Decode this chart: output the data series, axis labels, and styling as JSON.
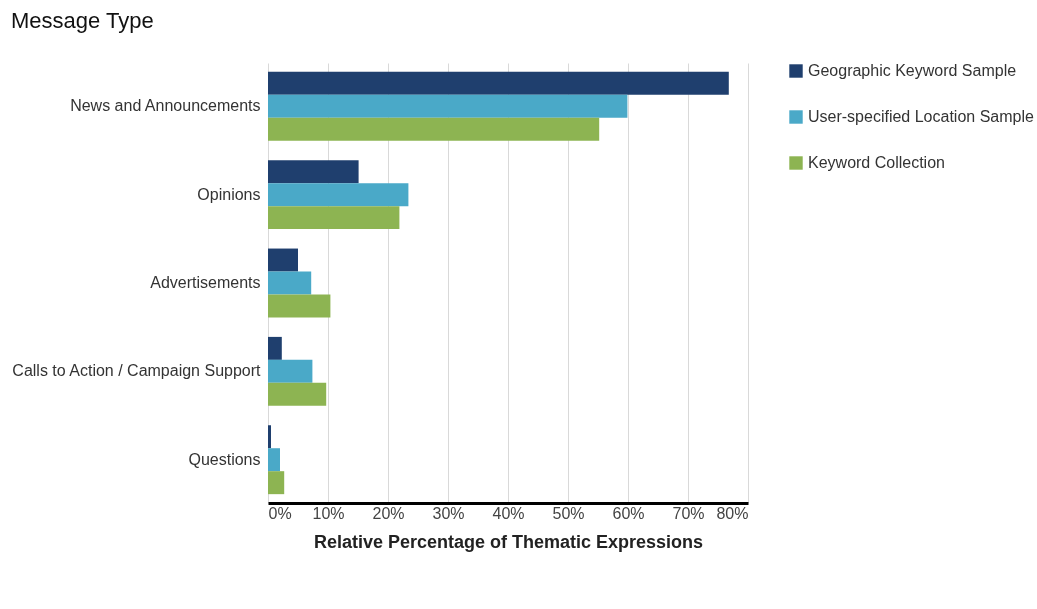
{
  "chart_data": {
    "type": "bar",
    "orientation": "horizontal",
    "title": "Message Type",
    "xlabel": "Relative Percentage of Thematic Expressions",
    "categories": [
      "News and Announcements",
      "Opinions",
      "Advertisements",
      "Calls to Action / Campaign Support",
      "Questions"
    ],
    "series": [
      {
        "name": "Geographic Keyword Sample",
        "color": "#1f3f6e",
        "values": [
          76.8,
          15.1,
          5.0,
          2.3,
          0.5
        ]
      },
      {
        "name": "User-specified Location Sample",
        "color": "#4aa9c8",
        "values": [
          59.9,
          23.4,
          7.2,
          7.4,
          2.0
        ]
      },
      {
        "name": "Keyword Collection",
        "color": "#8db452",
        "values": [
          55.2,
          21.9,
          10.4,
          9.7,
          2.7
        ]
      }
    ],
    "xlim": [
      0,
      80
    ],
    "xticks": [
      {
        "value": 0,
        "label": "0%"
      },
      {
        "value": 10,
        "label": "10%"
      },
      {
        "value": 20,
        "label": "20%"
      },
      {
        "value": 30,
        "label": "30%"
      },
      {
        "value": 40,
        "label": "40%"
      },
      {
        "value": 50,
        "label": "50%"
      },
      {
        "value": 60,
        "label": "60%"
      },
      {
        "value": 70,
        "label": "70%"
      },
      {
        "value": 80,
        "label": "80%"
      }
    ],
    "grid": "x",
    "legend": "right"
  }
}
